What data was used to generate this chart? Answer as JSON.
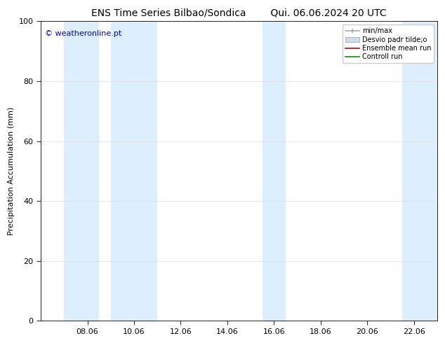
{
  "title_left": "ENS Time Series Bilbao/Sondica",
  "title_right": "Qui. 06.06.2024 20 UTC",
  "ylabel": "Precipitation Accumulation (mm)",
  "watermark": "© weatheronline.pt",
  "watermark_color": "#0000cc",
  "ylim": [
    0,
    100
  ],
  "yticks": [
    0,
    20,
    40,
    60,
    80,
    100
  ],
  "x_tick_labels": [
    "08.06",
    "10.06",
    "12.06",
    "14.06",
    "16.06",
    "18.06",
    "20.06",
    "22.06"
  ],
  "x_tick_positions": [
    2,
    4,
    6,
    8,
    10,
    12,
    14,
    16
  ],
  "xlim": [
    0.0,
    17.0
  ],
  "bg_color": "#ffffff",
  "plot_bg_color": "#ffffff",
  "shade_color": "#ddeeff",
  "shade_bands": [
    [
      1.0,
      2.5
    ],
    [
      3.0,
      5.0
    ],
    [
      9.5,
      10.5
    ],
    [
      15.5,
      17.0
    ]
  ],
  "legend_labels": [
    "min/max",
    "Desvio padr tilde;o",
    "Ensemble mean run",
    "Controll run"
  ],
  "legend_colors_line": [
    "#aaaaaa",
    "#ccddf0",
    "#cc0000",
    "#009900"
  ],
  "title_fontsize": 10,
  "tick_fontsize": 8,
  "ylabel_fontsize": 8,
  "watermark_fontsize": 8,
  "legend_fontsize": 7
}
